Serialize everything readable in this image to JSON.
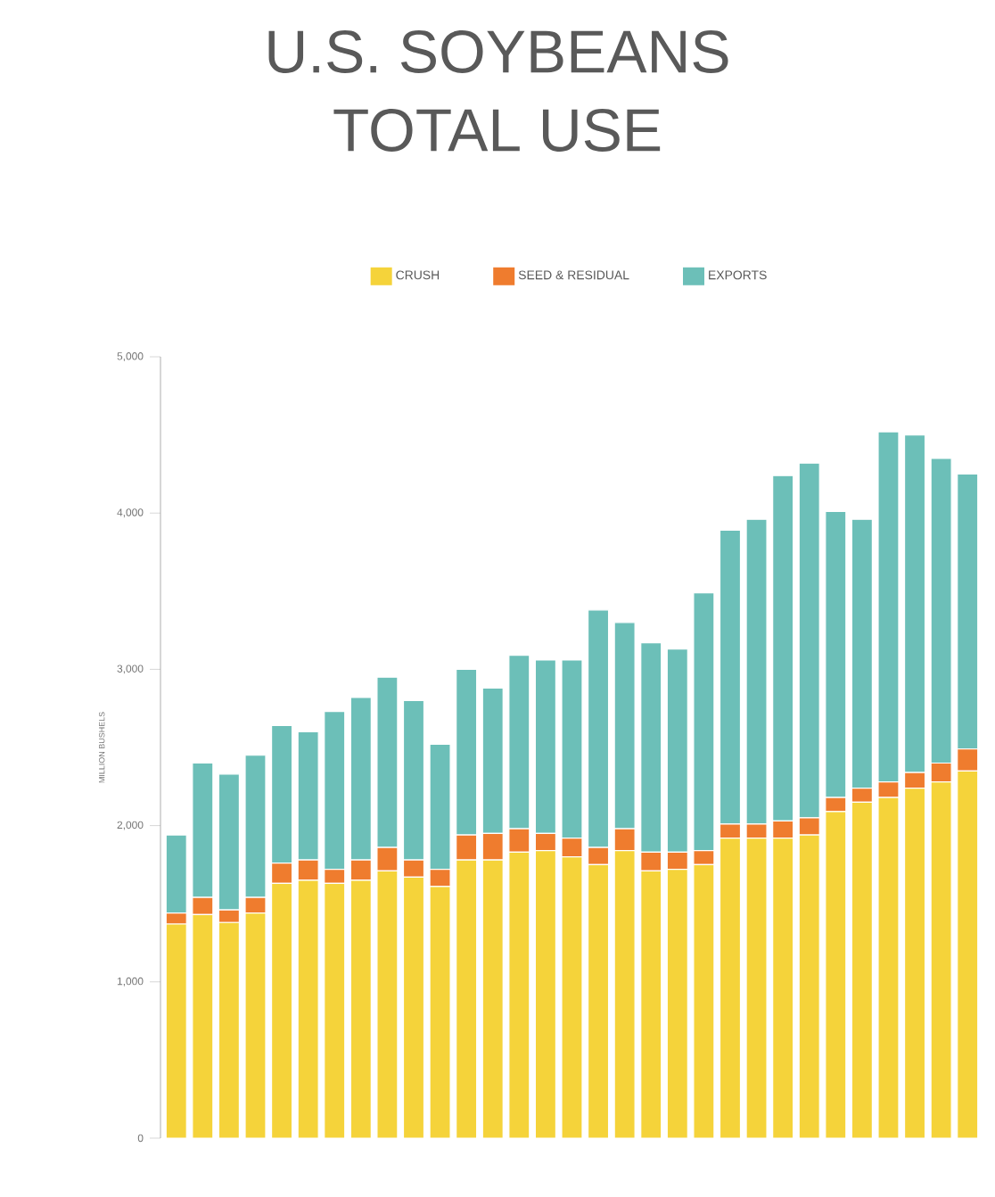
{
  "chart_data": {
    "type": "bar",
    "title": "U.S. SOYBEANS",
    "subtitle": "TOTAL USE",
    "ylabel": "MILLION BUSHELS",
    "categories": [
      null,
      null,
      null,
      null,
      null,
      null,
      null,
      null,
      null,
      null,
      null,
      null,
      null,
      null,
      null,
      null,
      null,
      null,
      null,
      null,
      null,
      null,
      null,
      null,
      null,
      null,
      null,
      null,
      null,
      null,
      null
    ],
    "stacked": true,
    "series": [
      {
        "name": "CRUSH",
        "color": "#f5d33a",
        "values": [
          1370,
          1430,
          1380,
          1440,
          1630,
          1650,
          1630,
          1650,
          1710,
          1670,
          1610,
          1780,
          1780,
          1830,
          1840,
          1800,
          1750,
          1840,
          1710,
          1720,
          1750,
          1920,
          1920,
          1920,
          1940,
          2090,
          2150,
          2180,
          2240,
          2280,
          2350
        ]
      },
      {
        "name": "SEED & RESIDUAL",
        "color": "#ef7c2e",
        "values": [
          70,
          110,
          80,
          100,
          130,
          130,
          90,
          130,
          150,
          110,
          110,
          160,
          170,
          150,
          110,
          120,
          110,
          140,
          120,
          110,
          90,
          90,
          90,
          110,
          110,
          90,
          90,
          100,
          100,
          120,
          140
        ]
      },
      {
        "name": "EXPORTS",
        "color": "#6cbfb8",
        "values": [
          500,
          860,
          870,
          910,
          880,
          820,
          1010,
          1040,
          1090,
          1020,
          800,
          1060,
          930,
          1110,
          1110,
          1140,
          1520,
          1320,
          1340,
          1300,
          1650,
          1880,
          1950,
          2210,
          2270,
          1830,
          1720,
          2240,
          2160,
          1950,
          1760
        ]
      }
    ],
    "ylim": [
      0,
      5000
    ],
    "yticks": [
      0,
      {
        "value": 1000,
        "label": "1,000"
      },
      {
        "value": 2000,
        "label": "2,000"
      },
      {
        "value": 3000,
        "label": "3,000"
      },
      {
        "value": 4000,
        "label": "4,000"
      },
      {
        "value": 5000,
        "label": "5,000"
      }
    ],
    "tick_labels": "y",
    "legend": "top"
  }
}
